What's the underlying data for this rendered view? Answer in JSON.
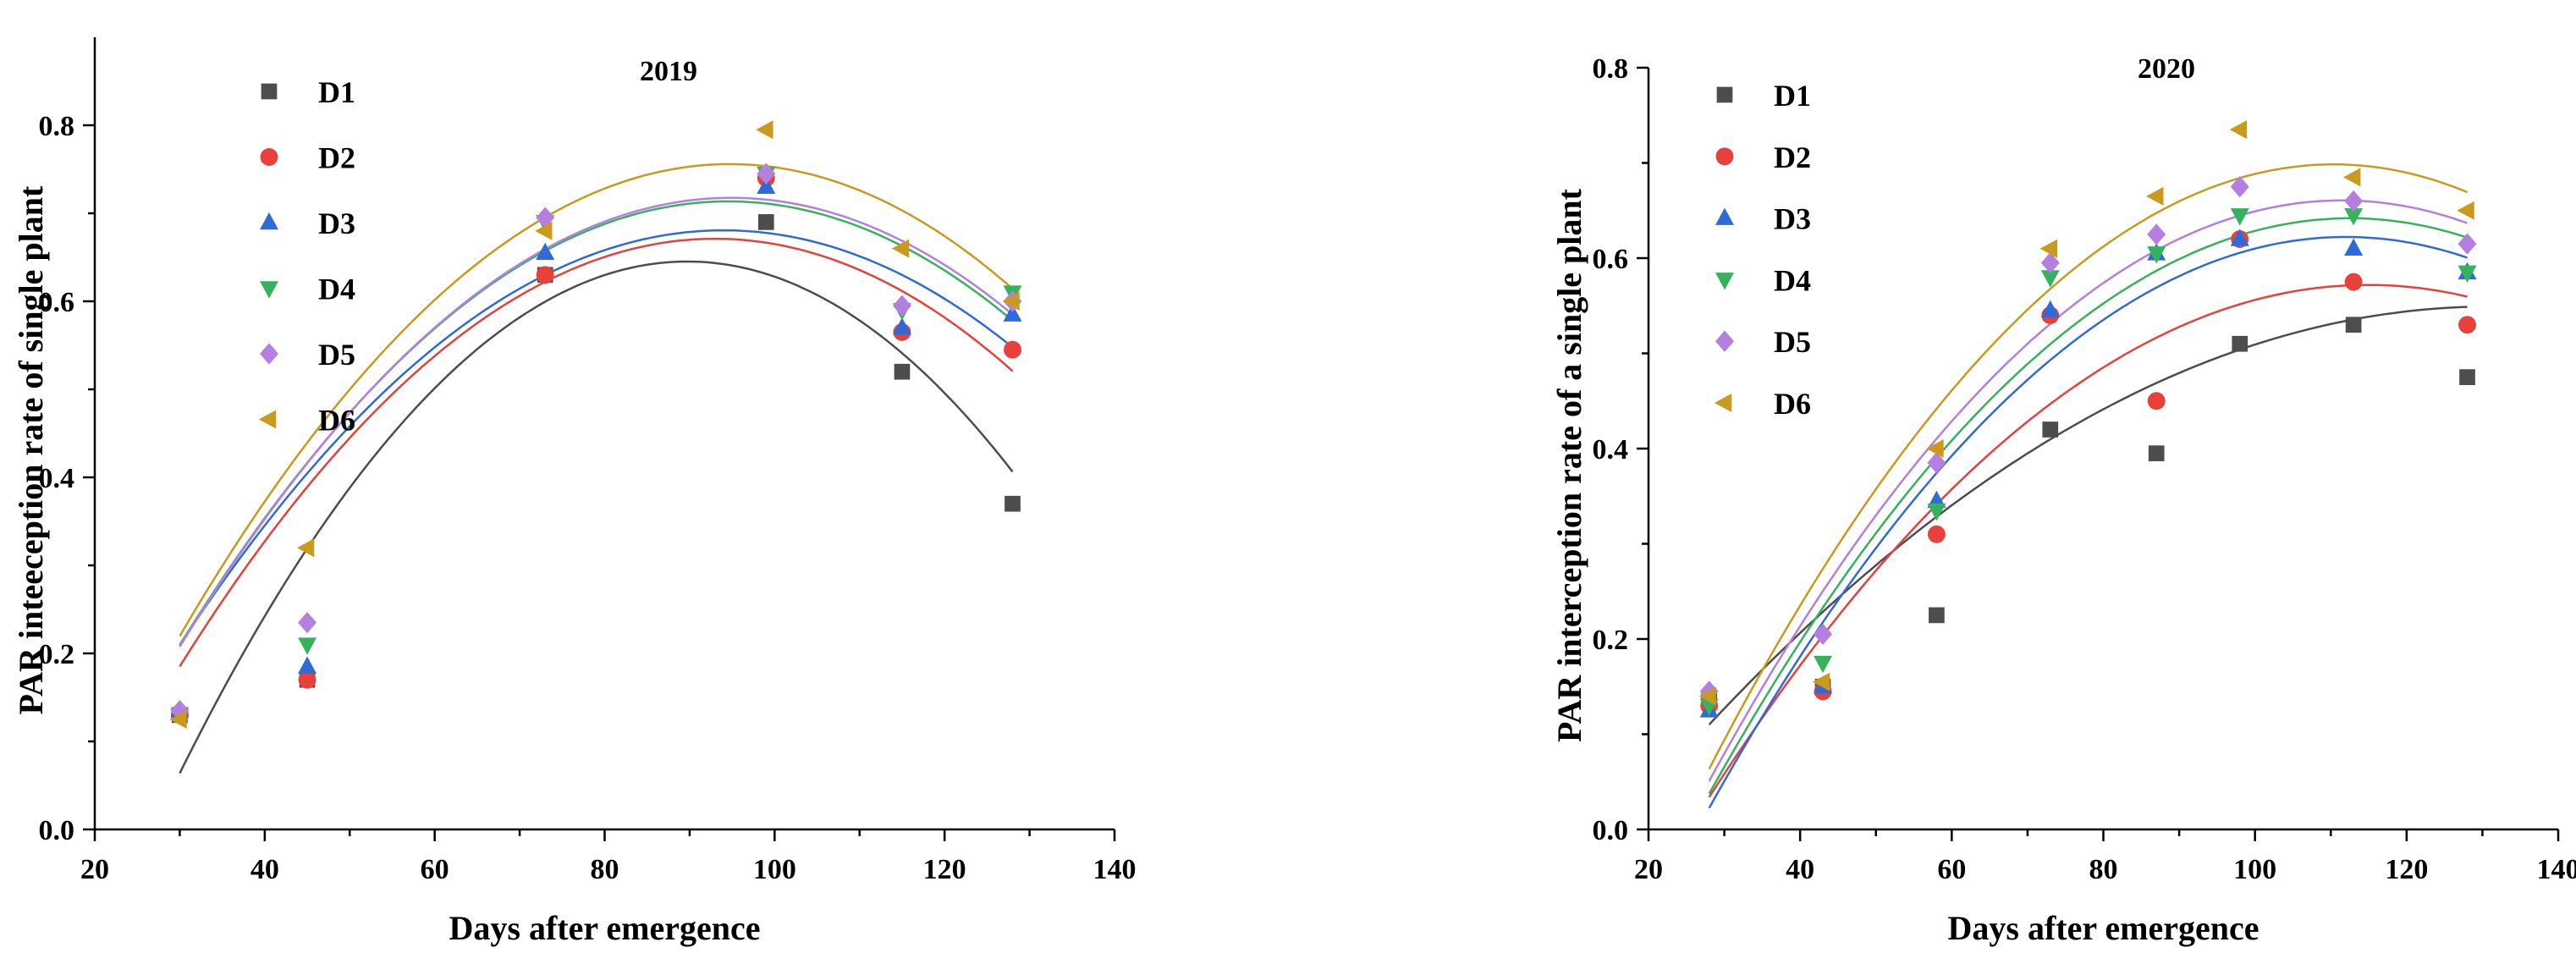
{
  "chart_data": [
    {
      "type": "scatter",
      "title": "2019",
      "xlabel": "Days after emergence",
      "ylabel": "PAR inteeception rate of single plant",
      "xlim": [
        20,
        140
      ],
      "ylim": [
        0,
        0.9
      ],
      "xticks": [
        20,
        40,
        60,
        80,
        100,
        120,
        140
      ],
      "xtick_labels": [
        "20",
        "40",
        "60",
        "80",
        "100",
        "120",
        "140"
      ],
      "yticks": [
        0,
        0.2,
        0.4,
        0.6,
        0.8
      ],
      "ytick_labels": [
        "0.0",
        "0.2",
        "0.4",
        "0.6",
        "0.8"
      ],
      "legend_position": "top-left",
      "series": [
        {
          "name": "D1",
          "color": "#4d4d4d",
          "marker": "square",
          "x": [
            30,
            45,
            73,
            99,
            115,
            128
          ],
          "y": [
            0.13,
            0.17,
            0.63,
            0.69,
            0.52,
            0.37
          ],
          "fit": [
            -0.000163,
            0.02925,
            -0.667
          ]
        },
        {
          "name": "D2",
          "color": "#e8413c",
          "marker": "circle",
          "x": [
            30,
            45,
            73,
            99,
            115,
            128
          ],
          "y": [
            0.13,
            0.17,
            0.63,
            0.74,
            0.565,
            0.545
          ],
          "fit": [
            -0.0001225,
            0.02278,
            -0.388
          ]
        },
        {
          "name": "D3",
          "color": "#2f6bd6",
          "marker": "triangle-up",
          "x": [
            30,
            45,
            73,
            99,
            115,
            128
          ],
          "y": [
            0.135,
            0.185,
            0.655,
            0.73,
            0.57,
            0.585
          ],
          "fit": [
            -0.000115,
            0.02162,
            -0.3355
          ]
        },
        {
          "name": "D4",
          "color": "#35b35c",
          "marker": "triangle-down",
          "x": [
            30,
            45,
            73,
            99,
            115,
            128
          ],
          "y": [
            0.13,
            0.21,
            0.69,
            0.745,
            0.59,
            0.61
          ],
          "fit": [
            -0.000121,
            0.02288,
            -0.3681
          ]
        },
        {
          "name": "D5",
          "color": "#b57fe0",
          "marker": "diamond",
          "x": [
            30,
            45,
            73,
            99,
            115,
            128
          ],
          "y": [
            0.135,
            0.235,
            0.695,
            0.745,
            0.595,
            0.6
          ],
          "fit": [
            -0.000121,
            0.02297,
            -0.3726
          ]
        },
        {
          "name": "D6",
          "color": "#c99a1c",
          "marker": "triangle-left",
          "x": [
            30,
            45,
            73,
            99,
            115,
            128
          ],
          "y": [
            0.125,
            0.32,
            0.68,
            0.795,
            0.66,
            0.6
          ],
          "fit": [
            -0.000128,
            0.02425,
            -0.3927
          ]
        }
      ]
    },
    {
      "type": "scatter",
      "title": "2020",
      "xlabel": "Days after emergence",
      "ylabel": "PAR interception rate of a single plant",
      "xlim": [
        20,
        140
      ],
      "ylim": [
        0,
        0.8
      ],
      "xticks": [
        20,
        40,
        60,
        80,
        100,
        120,
        140
      ],
      "xtick_labels": [
        "20",
        "40",
        "60",
        "80",
        "100",
        "120",
        "140"
      ],
      "yticks": [
        0,
        0.2,
        0.4,
        0.6,
        0.8
      ],
      "ytick_labels": [
        "0.0",
        "0.2",
        "0.4",
        "0.6",
        "0.8"
      ],
      "legend_position": "top-left",
      "series": [
        {
          "name": "D1",
          "color": "#4d4d4d",
          "marker": "square",
          "x": [
            28,
            43,
            58,
            73,
            87,
            98,
            113,
            128
          ],
          "y": [
            0.135,
            0.15,
            0.225,
            0.42,
            0.395,
            0.51,
            0.53,
            0.475
          ],
          "fit": [
            -4.13e-05,
            0.01083,
            -0.1608
          ]
        },
        {
          "name": "D2",
          "color": "#e8413c",
          "marker": "circle",
          "x": [
            28,
            43,
            58,
            73,
            87,
            98,
            113,
            128
          ],
          "y": [
            0.13,
            0.145,
            0.31,
            0.54,
            0.45,
            0.62,
            0.575,
            0.53
          ],
          "fit": [
            -7.13e-05,
            0.01638,
            -0.3689
          ]
        },
        {
          "name": "D3",
          "color": "#2f6bd6",
          "marker": "triangle-up",
          "x": [
            28,
            43,
            58,
            73,
            87,
            98,
            113,
            128
          ],
          "y": [
            0.125,
            0.15,
            0.345,
            0.545,
            0.605,
            0.62,
            0.61,
            0.585
          ],
          "fit": [
            -8.5e-05,
            0.01904,
            -0.444
          ]
        },
        {
          "name": "D4",
          "color": "#35b35c",
          "marker": "triangle-down",
          "x": [
            28,
            43,
            58,
            73,
            87,
            98,
            113,
            128
          ],
          "y": [
            0.13,
            0.175,
            0.335,
            0.58,
            0.605,
            0.645,
            0.645,
            0.585
          ],
          "fit": [
            -8.46e-05,
            0.01904,
            -0.4294
          ]
        },
        {
          "name": "D5",
          "color": "#b57fe0",
          "marker": "diamond",
          "x": [
            28,
            43,
            58,
            73,
            87,
            98,
            113,
            128
          ],
          "y": [
            0.145,
            0.205,
            0.385,
            0.595,
            0.625,
            0.675,
            0.66,
            0.615
          ],
          "fit": [
            -8.75e-05,
            0.01951,
            -0.4269
          ]
        },
        {
          "name": "D6",
          "color": "#c99a1c",
          "marker": "triangle-left",
          "x": [
            28,
            43,
            58,
            73,
            87,
            98,
            113,
            128
          ],
          "y": [
            0.14,
            0.155,
            0.4,
            0.61,
            0.665,
            0.735,
            0.685,
            0.65
          ],
          "fit": [
            -9.36e-05,
            0.02066,
            -0.4416
          ]
        }
      ]
    }
  ]
}
